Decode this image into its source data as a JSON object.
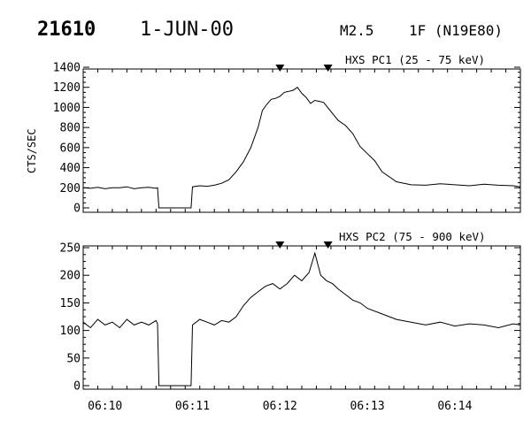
{
  "header": {
    "event_number": "21610",
    "date": "1-JUN-00",
    "flare_class": "M2.5",
    "optical_class": "1F (N19E80)"
  },
  "chart_data": [
    {
      "type": "line",
      "title": "HXS PC1 (25 - 75 keV)",
      "ylabel": "CTS/SEC",
      "xlabel": "",
      "xlim": [
        "06:09:45",
        "06:14:45"
      ],
      "ylim": [
        0,
        1400
      ],
      "yticks": [
        "0",
        "200",
        "400",
        "600",
        "800",
        "1000",
        "1200",
        "1400"
      ],
      "xticks": [
        "06:10",
        "06:11",
        "06:12",
        "06:13",
        "06:14"
      ],
      "markers": [
        "06:12:00",
        "06:12:33"
      ],
      "series": [
        {
          "x": [
            "06:09:45",
            "06:09:50",
            "06:09:55",
            "06:10:00",
            "06:10:05",
            "06:10:10",
            "06:10:15",
            "06:10:20",
            "06:10:25",
            "06:10:30",
            "06:10:35",
            "06:10:36",
            "06:10:37",
            "06:10:59",
            "06:11:00",
            "06:11:05",
            "06:11:10",
            "06:11:15",
            "06:11:20",
            "06:11:25",
            "06:11:30",
            "06:11:35",
            "06:11:40",
            "06:11:45",
            "06:11:48",
            "06:11:51",
            "06:11:54",
            "06:11:57",
            "06:12:00",
            "06:12:03",
            "06:12:06",
            "06:12:09",
            "06:12:12",
            "06:12:15",
            "06:12:18",
            "06:12:21",
            "06:12:24",
            "06:12:27",
            "06:12:30",
            "06:12:35",
            "06:12:40",
            "06:12:45",
            "06:12:50",
            "06:12:55",
            "06:13:00",
            "06:13:05",
            "06:13:10",
            "06:13:20",
            "06:13:30",
            "06:13:40",
            "06:13:50",
            "06:14:00",
            "06:14:10",
            "06:14:20",
            "06:14:30",
            "06:14:40",
            "06:14:45"
          ],
          "y": [
            200,
            195,
            205,
            190,
            200,
            200,
            210,
            190,
            200,
            205,
            195,
            200,
            0,
            0,
            210,
            220,
            215,
            225,
            245,
            280,
            360,
            460,
            600,
            800,
            970,
            1030,
            1080,
            1090,
            1110,
            1150,
            1160,
            1170,
            1200,
            1140,
            1100,
            1040,
            1070,
            1060,
            1050,
            960,
            870,
            820,
            740,
            610,
            540,
            470,
            360,
            260,
            230,
            225,
            240,
            230,
            220,
            235,
            225,
            220,
            210
          ]
        }
      ]
    },
    {
      "type": "line",
      "title": "HXS PC2 (75 - 900 keV)",
      "ylabel": "",
      "xlabel": "",
      "xlim": [
        "06:09:45",
        "06:14:45"
      ],
      "ylim": [
        0,
        250
      ],
      "yticks": [
        "0",
        "50",
        "100",
        "150",
        "200",
        "250"
      ],
      "xticks": [
        "06:10",
        "06:11",
        "06:12",
        "06:13",
        "06:14"
      ],
      "markers": [
        "06:12:00",
        "06:12:33"
      ],
      "series": [
        {
          "x": [
            "06:09:45",
            "06:09:50",
            "06:09:55",
            "06:10:00",
            "06:10:05",
            "06:10:10",
            "06:10:15",
            "06:10:20",
            "06:10:25",
            "06:10:30",
            "06:10:35",
            "06:10:36",
            "06:10:37",
            "06:10:59",
            "06:11:00",
            "06:11:05",
            "06:11:10",
            "06:11:15",
            "06:11:20",
            "06:11:25",
            "06:11:30",
            "06:11:35",
            "06:11:40",
            "06:11:45",
            "06:11:50",
            "06:11:55",
            "06:12:00",
            "06:12:05",
            "06:12:10",
            "06:12:15",
            "06:12:20",
            "06:12:24",
            "06:12:28",
            "06:12:32",
            "06:12:36",
            "06:12:40",
            "06:12:45",
            "06:12:50",
            "06:12:55",
            "06:13:00",
            "06:13:10",
            "06:13:20",
            "06:13:30",
            "06:13:40",
            "06:13:50",
            "06:14:00",
            "06:14:10",
            "06:14:20",
            "06:14:30",
            "06:14:40",
            "06:14:45"
          ],
          "y": [
            115,
            105,
            120,
            110,
            115,
            105,
            120,
            110,
            115,
            110,
            118,
            112,
            0,
            0,
            110,
            120,
            115,
            110,
            118,
            115,
            125,
            145,
            160,
            170,
            180,
            185,
            175,
            185,
            200,
            190,
            205,
            240,
            200,
            190,
            185,
            175,
            165,
            155,
            150,
            140,
            130,
            120,
            115,
            110,
            115,
            108,
            112,
            110,
            105,
            112,
            110
          ]
        }
      ]
    }
  ]
}
